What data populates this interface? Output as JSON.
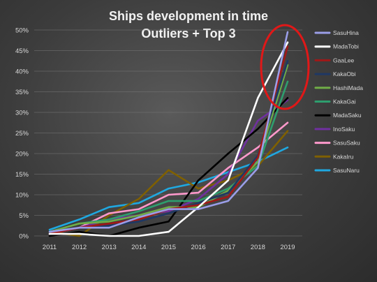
{
  "chart_data": {
    "type": "line",
    "title": "Ships development in time",
    "subtitle": "Outliers + Top 3",
    "xlabel": "",
    "ylabel": "",
    "categories": [
      "2011",
      "2012",
      "2013",
      "2014",
      "2015",
      "2016",
      "2017",
      "2018",
      "2019"
    ],
    "ylim": [
      0,
      0.5
    ],
    "yticks": [
      0,
      0.05,
      0.1,
      0.15,
      0.2,
      0.25,
      0.3,
      0.35,
      0.4,
      0.45,
      0.5
    ],
    "ytick_labels": [
      "0%",
      "5%",
      "10%",
      "15%",
      "20%",
      "25%",
      "30%",
      "35%",
      "40%",
      "45%",
      "50%"
    ],
    "grid": true,
    "legend_position": "right",
    "highlight": {
      "shape": "ellipse",
      "color": "#e01818",
      "around": "2019"
    },
    "series": [
      {
        "name": "SasuHina",
        "color": "#9b9ee8",
        "values": [
          0.01,
          0.02,
          0.02,
          0.045,
          0.065,
          0.065,
          0.085,
          0.165,
          0.495
        ]
      },
      {
        "name": "MadaTobi",
        "color": "#ffffff",
        "values": [
          0.005,
          0.005,
          0.0,
          0.0,
          0.01,
          0.07,
          0.135,
          0.335,
          0.47
        ]
      },
      {
        "name": "GaaLee",
        "color": "#a01818",
        "values": [
          0.005,
          0.02,
          0.03,
          0.04,
          0.065,
          0.075,
          0.095,
          0.19,
          0.46
        ]
      },
      {
        "name": "KakaObi",
        "color": "#1f3864",
        "values": [
          0.01,
          0.02,
          0.025,
          0.035,
          0.055,
          0.08,
          0.105,
          0.195,
          0.425
        ]
      },
      {
        "name": "HashiMada",
        "color": "#70ad47",
        "values": [
          0.01,
          0.03,
          0.035,
          0.05,
          0.07,
          0.07,
          0.11,
          0.18,
          0.415
        ]
      },
      {
        "name": "KakaGai",
        "color": "#2e9e6e",
        "values": [
          0.01,
          0.03,
          0.04,
          0.06,
          0.085,
          0.085,
          0.115,
          0.17,
          0.375
        ]
      },
      {
        "name": "MadaSaku",
        "color": "#000000",
        "values": [
          0.0,
          0.01,
          0.0,
          0.02,
          0.035,
          0.135,
          0.2,
          0.26,
          0.335
        ]
      },
      {
        "name": "InoSaku",
        "color": "#7030a0",
        "values": [
          0.005,
          0.02,
          0.04,
          0.05,
          0.06,
          0.09,
          0.15,
          0.28,
          0.33
        ]
      },
      {
        "name": "SasuSaku",
        "color": "#ff99cc",
        "values": [
          0.005,
          0.02,
          0.055,
          0.065,
          0.1,
          0.105,
          0.165,
          0.215,
          0.275
        ]
      },
      {
        "name": "KakaIru",
        "color": "#7f6000",
        "values": [
          0.01,
          0.0,
          0.05,
          0.09,
          0.16,
          0.115,
          0.135,
          0.17,
          0.255
        ]
      },
      {
        "name": "SasuNaru",
        "color": "#1fa8e0",
        "values": [
          0.015,
          0.04,
          0.07,
          0.08,
          0.115,
          0.13,
          0.155,
          0.18,
          0.215
        ]
      }
    ]
  }
}
